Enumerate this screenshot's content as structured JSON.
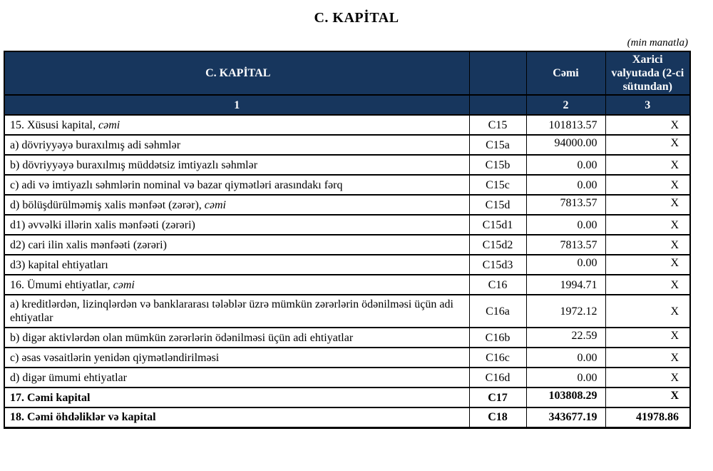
{
  "page_title": "C. KAPİTAL",
  "unit_note": "(min manatla)",
  "colors": {
    "header_bg": "#17365D",
    "header_text": "#FFFFFF",
    "border": "#000000",
    "page_bg": "#FFFFFF"
  },
  "table": {
    "header": {
      "col1": "C. KAPİTAL",
      "col2": "",
      "col3": "Cəmi",
      "col4": "Xarici valyutada (2-ci sütundan)"
    },
    "index_row": [
      "1",
      "",
      "2",
      "3"
    ],
    "rows": [
      {
        "label": "15. Xüsusi kapital, ",
        "label_italic": "cəmi",
        "code": "C15",
        "value": "101813.57",
        "currency": "X"
      },
      {
        "label": "a) dövriyyəyə buraxılmış adi səhmlər",
        "code": "C15a",
        "value": "94000.00",
        "currency": "X",
        "valign": "top"
      },
      {
        "label": "b) dövriyyəyə buraxılmış müddətsiz imtiyazlı səhmlər",
        "code": "C15b",
        "value": "0.00",
        "currency": "X"
      },
      {
        "label": "c) adi və imtiyazlı səhmlərin nominal və bazar qiymətləri arasındakı fərq",
        "code": "C15c",
        "value": "0.00",
        "currency": "X"
      },
      {
        "label": "d) bölüşdürülməmiş xalis mənfəət (zərər), ",
        "label_italic": "cəmi",
        "code": "C15d",
        "value": "7813.57",
        "currency": "X",
        "valign": "top"
      },
      {
        "label": "d1) əvvəlki illərin xalis mənfəəti (zərəri)",
        "code": "C15d1",
        "value": "0.00",
        "currency": "X"
      },
      {
        "label": "d2) cari ilin xalis mənfəəti (zərəri)",
        "code": "C15d2",
        "value": "7813.57",
        "currency": "X"
      },
      {
        "label": "d3) kapital ehtiyatları",
        "code": "C15d3",
        "value": "0.00",
        "currency": "X",
        "valign": "top"
      },
      {
        "label": "16. Ümumi ehtiyatlar, ",
        "label_italic": "cəmi",
        "code": "C16",
        "value": "1994.71",
        "currency": "X"
      },
      {
        "label": "a) kreditlərdən, lizinqlərdən və banklararası  tələblər üzrə mümkün zərərlərin ödənilməsi üçün adi ehtiyatlar",
        "code": "C16a",
        "value": "1972.12",
        "currency": "X",
        "tall": true
      },
      {
        "label": "b) digər aktivlərdən olan mümkün zərərlərin ödənilməsi üçün adi ehtiyatlar",
        "code": "C16b",
        "value": "22.59",
        "currency": "X",
        "valign": "top"
      },
      {
        "label": "c) əsas vəsaitlərin yenidən qiymətləndirilməsi",
        "code": "C16c",
        "value": "0.00",
        "currency": "X"
      },
      {
        "label": "d) digər ümumi ehtiyatlar",
        "code": "C16d",
        "value": "0.00",
        "currency": "X"
      },
      {
        "label": "17. Cəmi kapital",
        "code": "C17",
        "value": "103808.29",
        "currency": "X",
        "bold": true,
        "valign": "top"
      },
      {
        "label": "18. Cəmi öhdəliklər və kapital",
        "code": "C18",
        "value": "343677.19",
        "currency": "41978.86",
        "bold": true
      }
    ]
  }
}
